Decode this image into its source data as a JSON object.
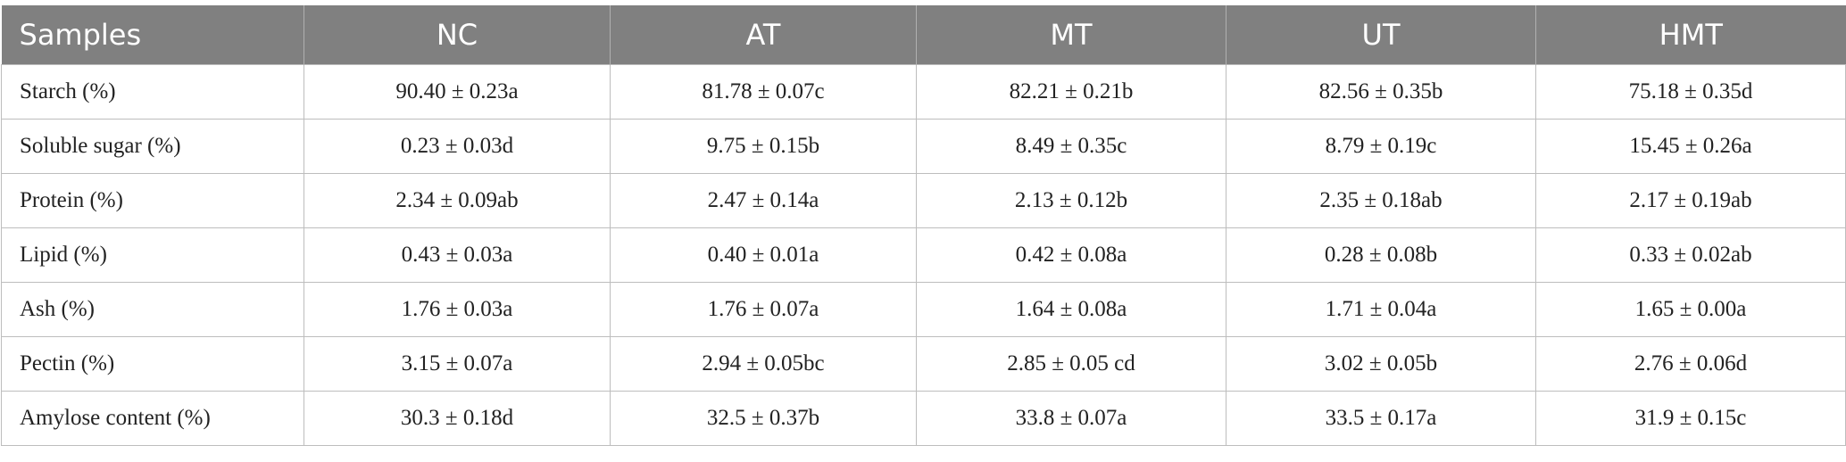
{
  "table": {
    "header": [
      "Samples",
      "NC",
      "AT",
      "MT",
      "UT",
      "HMT"
    ],
    "rows": [
      [
        "Starch (%)",
        "90.40 ± 0.23a",
        "81.78 ± 0.07c",
        "82.21 ± 0.21b",
        "82.56 ± 0.35b",
        "75.18 ± 0.35d"
      ],
      [
        "Soluble sugar (%)",
        "0.23 ± 0.03d",
        "9.75 ± 0.15b",
        "8.49 ± 0.35c",
        "8.79 ± 0.19c",
        "15.45 ± 0.26a"
      ],
      [
        "Protein (%)",
        "2.34 ± 0.09ab",
        "2.47 ± 0.14a",
        "2.13 ± 0.12b",
        "2.35 ± 0.18ab",
        "2.17 ± 0.19ab"
      ],
      [
        "Lipid (%)",
        "0.43 ± 0.03a",
        "0.40 ± 0.01a",
        "0.42 ± 0.08a",
        "0.28 ± 0.08b",
        "0.33 ± 0.02ab"
      ],
      [
        "Ash (%)",
        "1.76 ± 0.03a",
        "1.76 ± 0.07a",
        "1.64 ± 0.08a",
        "1.71 ± 0.04a",
        "1.65 ± 0.00a"
      ],
      [
        "Pectin (%)",
        "3.15 ± 0.07a",
        "2.94 ± 0.05bc",
        "2.85 ± 0.05 cd",
        "3.02 ± 0.05b",
        "2.76 ± 0.06d"
      ],
      [
        "Amylose content (%)",
        "30.3 ± 0.18d",
        "32.5 ± 0.37b",
        "33.8 ± 0.07a",
        "33.5 ± 0.17a",
        "31.9 ± 0.15c"
      ]
    ]
  }
}
